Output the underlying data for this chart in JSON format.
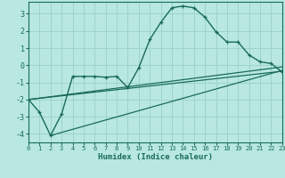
{
  "xlabel": "Humidex (Indice chaleur)",
  "bg_color": "#b8e8e0",
  "grid_color": "#9dd4cc",
  "line_color": "#1a6b5a",
  "xlim": [
    0,
    23
  ],
  "ylim": [
    -4.5,
    3.7
  ],
  "yticks": [
    -4,
    -3,
    -2,
    -1,
    0,
    1,
    2,
    3
  ],
  "xticks": [
    0,
    1,
    2,
    3,
    4,
    5,
    6,
    7,
    8,
    9,
    10,
    11,
    12,
    13,
    14,
    15,
    16,
    17,
    18,
    19,
    20,
    21,
    22,
    23
  ],
  "curve1_x": [
    0,
    1,
    2,
    3,
    4,
    5,
    6,
    7,
    8,
    9,
    10,
    11,
    12,
    13,
    14,
    15,
    16,
    17,
    18,
    19,
    20,
    21,
    22,
    23
  ],
  "curve1_y": [
    -2.0,
    -2.75,
    -4.1,
    -2.85,
    -0.65,
    -0.65,
    -0.65,
    -0.7,
    -0.65,
    -1.3,
    -0.15,
    1.5,
    2.5,
    3.35,
    3.45,
    3.35,
    2.8,
    1.95,
    1.35,
    1.35,
    0.6,
    0.2,
    0.1,
    -0.4
  ],
  "line1_x": [
    0,
    23
  ],
  "line1_y": [
    -2.0,
    -0.35
  ],
  "line2_x": [
    2,
    23
  ],
  "line2_y": [
    -4.1,
    -0.3
  ],
  "line3_x": [
    0,
    23
  ],
  "line3_y": [
    -2.0,
    -0.1
  ]
}
